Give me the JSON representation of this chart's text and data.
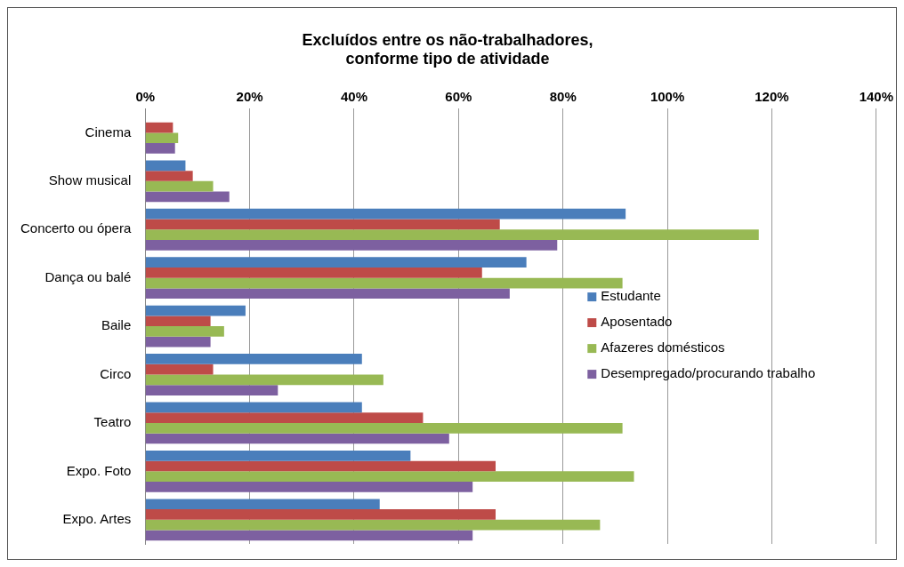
{
  "chart_data": {
    "type": "bar",
    "orientation": "horizontal",
    "title": "Excluídos entre os não-trabalhadores,\nconforme tipo de atividade",
    "categories": [
      "Cinema",
      "Show musical",
      "Concerto ou ópera",
      "Dança ou balé",
      "Baile",
      "Circo",
      "Teatro",
      "Expo. Foto",
      "Expo. Artes"
    ],
    "series": [
      {
        "name": "Estudante",
        "color": "#4a7ebb",
        "values": [
          null,
          7.7,
          92,
          73,
          19.2,
          41.5,
          41.5,
          50.8,
          44.9
        ]
      },
      {
        "name": "Aposentado",
        "color": "#be4b48",
        "values": [
          5.3,
          9.1,
          67.9,
          64.5,
          12.5,
          13,
          53.2,
          67.1,
          67.1
        ]
      },
      {
        "name": "Afazeres domésticos",
        "color": "#98b954",
        "values": [
          6.3,
          13,
          117.5,
          91.4,
          15.1,
          45.6,
          91.4,
          93.6,
          87.1
        ]
      },
      {
        "name": "Desempregado/procurando trabalho",
        "color": "#7d60a0",
        "values": [
          5.7,
          16.1,
          78.9,
          69.8,
          12.5,
          25.4,
          58.2,
          62.7,
          62.7
        ]
      }
    ],
    "xlim": [
      0,
      140
    ],
    "xticks": [
      {
        "value": 0,
        "label": "0%"
      },
      {
        "value": 20,
        "label": "20%"
      },
      {
        "value": 40,
        "label": "40%"
      },
      {
        "value": 60,
        "label": "60%"
      },
      {
        "value": 80,
        "label": "80%"
      },
      {
        "value": 100,
        "label": "100%"
      },
      {
        "value": 120,
        "label": "120%"
      },
      {
        "value": 140,
        "label": "140%"
      }
    ],
    "grid": "x",
    "legend": "right"
  }
}
